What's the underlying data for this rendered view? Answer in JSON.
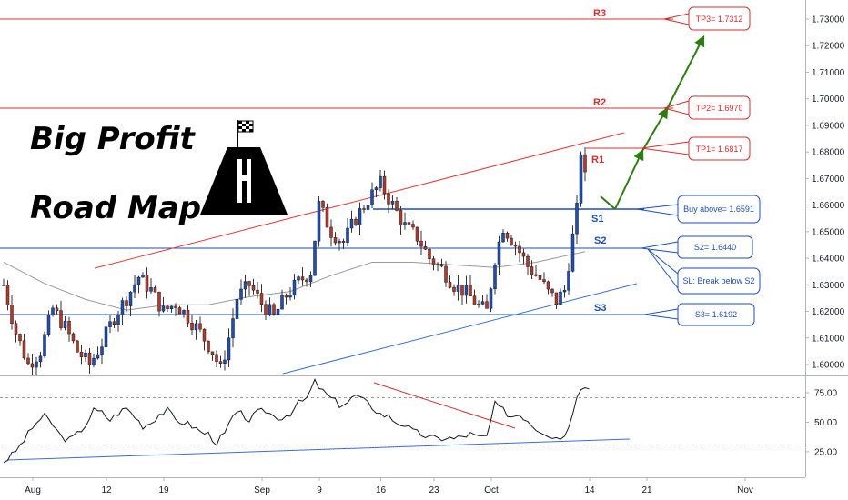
{
  "headline": {
    "line1": "Big Profit",
    "line2": "Road Map"
  },
  "price_axis": {
    "ticks": [
      "1.73000",
      "1.72000",
      "1.71000",
      "1.70000",
      "1.69000",
      "1.68000",
      "1.67000",
      "1.66000",
      "1.65000",
      "1.64000",
      "1.63000",
      "1.62000",
      "1.61000",
      "1.60000"
    ]
  },
  "rsi_axis": {
    "ticks": [
      "75.00",
      "50.00",
      "25.00"
    ]
  },
  "time_axis": {
    "ticks": [
      "Aug",
      "12",
      "19",
      "Sep",
      "9",
      "16",
      "23",
      "Oct",
      "14",
      "21",
      "Nov"
    ]
  },
  "levels": {
    "r3": "R3",
    "r2": "R2",
    "r1": "R1",
    "s1": "S1",
    "s2": "S2",
    "s3": "S3"
  },
  "callouts": {
    "tp3": "TP3= 1.7312",
    "tp2": "TP2= 1.6970",
    "tp1": "TP1= 1.6817",
    "buy": "Buy above= 1.6591",
    "s2": "S2= 1.6440",
    "sl": "SL: Break below S2",
    "s3": "S3= 1.6192"
  },
  "colors": {
    "resistance": "#d32f2f",
    "support": "#1e4fb4",
    "target_arrow": "#2e7d12",
    "candle_up": "#1e4fb4",
    "candle_down": "#b33a2a",
    "rsi_line": "#131722"
  },
  "icons": [
    "road-map-icon",
    "finish-flag-icon"
  ],
  "chart_data": [
    {
      "type": "candlestick",
      "title": "",
      "y_axis_ticks": [
        1.73,
        1.72,
        1.71,
        1.7,
        1.69,
        1.68,
        1.67,
        1.66,
        1.65,
        1.64,
        1.63,
        1.62,
        1.61,
        1.6
      ],
      "ylim": [
        1.595,
        1.7375
      ],
      "x_ticks": [
        "Aug",
        "12",
        "19",
        "Sep",
        "9",
        "16",
        "23",
        "Oct",
        "14",
        "21",
        "Nov"
      ],
      "close_path": [
        [
          0,
          1.63
        ],
        [
          3,
          1.612
        ],
        [
          6,
          1.6
        ],
        [
          9,
          1.605
        ],
        [
          12,
          1.621
        ],
        [
          15,
          1.614
        ],
        [
          18,
          1.605
        ],
        [
          21,
          1.6
        ],
        [
          24,
          1.608
        ],
        [
          27,
          1.618
        ],
        [
          30,
          1.625
        ],
        [
          33,
          1.633
        ],
        [
          36,
          1.628
        ],
        [
          39,
          1.62
        ],
        [
          42,
          1.623
        ],
        [
          45,
          1.618
        ],
        [
          48,
          1.612
        ],
        [
          51,
          1.605
        ],
        [
          53,
          1.598
        ],
        [
          55,
          1.61
        ],
        [
          57,
          1.625
        ],
        [
          60,
          1.63
        ],
        [
          63,
          1.623
        ],
        [
          66,
          1.618
        ],
        [
          69,
          1.626
        ],
        [
          72,
          1.631
        ],
        [
          75,
          1.635
        ],
        [
          77,
          1.66
        ],
        [
          80,
          1.65
        ],
        [
          83,
          1.646
        ],
        [
          86,
          1.655
        ],
        [
          89,
          1.662
        ],
        [
          92,
          1.668
        ],
        [
          95,
          1.66
        ],
        [
          98,
          1.652
        ],
        [
          101,
          1.648
        ],
        [
          104,
          1.64
        ],
        [
          107,
          1.636
        ],
        [
          110,
          1.63
        ],
        [
          113,
          1.627
        ],
        [
          116,
          1.622
        ],
        [
          118,
          1.62
        ],
        [
          120,
          1.64
        ],
        [
          122,
          1.652
        ],
        [
          125,
          1.645
        ],
        [
          128,
          1.637
        ],
        [
          131,
          1.632
        ],
        [
          133,
          1.627
        ],
        [
          135,
          1.624
        ],
        [
          137,
          1.628
        ],
        [
          139,
          1.648
        ],
        [
          141,
          1.668
        ],
        [
          142,
          1.673
        ]
      ],
      "series": [
        {
          "name": "",
          "color": "#999999",
          "values": [
            [
              0,
              1.6385
            ],
            [
              10,
              1.6305
            ],
            [
              20,
              1.6245
            ],
            [
              30,
              1.6205
            ],
            [
              40,
              1.6225
            ],
            [
              50,
              1.6225
            ],
            [
              60,
              1.6255
            ],
            [
              70,
              1.6275
            ],
            [
              80,
              1.6335
            ],
            [
              90,
              1.6385
            ],
            [
              100,
              1.6385
            ],
            [
              110,
              1.6375
            ],
            [
              120,
              1.6365
            ],
            [
              130,
              1.6385
            ],
            [
              142,
              1.6425
            ]
          ]
        }
      ],
      "levels": {
        "R3": 1.7312,
        "R2": 1.697,
        "R1": 1.6817,
        "S1": 1.6591,
        "S2": 1.644,
        "S3": 1.6192
      }
    },
    {
      "type": "line",
      "title": "",
      "y_axis_ticks": [
        75,
        50,
        25
      ],
      "ylim": [
        10,
        95
      ],
      "guide_lines": [
        70,
        30
      ],
      "series": [
        {
          "name": "",
          "values": [
            [
              0,
              17
            ],
            [
              2,
              22
            ],
            [
              4,
              30
            ],
            [
              6,
              40
            ],
            [
              8,
              50
            ],
            [
              10,
              55
            ],
            [
              12,
              48
            ],
            [
              14,
              38
            ],
            [
              16,
              35
            ],
            [
              18,
              40
            ],
            [
              20,
              48
            ],
            [
              22,
              60
            ],
            [
              24,
              58
            ],
            [
              26,
              52
            ],
            [
              28,
              58
            ],
            [
              30,
              62
            ],
            [
              32,
              55
            ],
            [
              34,
              47
            ],
            [
              36,
              50
            ],
            [
              38,
              57
            ],
            [
              40,
              60
            ],
            [
              42,
              52
            ],
            [
              44,
              50
            ],
            [
              46,
              47
            ],
            [
              48,
              42
            ],
            [
              50,
              40
            ],
            [
              52,
              33
            ],
            [
              54,
              40
            ],
            [
              56,
              55
            ],
            [
              58,
              57
            ],
            [
              60,
              52
            ],
            [
              62,
              58
            ],
            [
              64,
              60
            ],
            [
              66,
              55
            ],
            [
              68,
              54
            ],
            [
              70,
              58
            ],
            [
              72,
              66
            ],
            [
              74,
              70
            ],
            [
              76,
              84
            ],
            [
              78,
              76
            ],
            [
              80,
              70
            ],
            [
              82,
              65
            ],
            [
              84,
              67
            ],
            [
              86,
              73
            ],
            [
              88,
              68
            ],
            [
              90,
              63
            ],
            [
              92,
              57
            ],
            [
              94,
              55
            ],
            [
              96,
              50
            ],
            [
              98,
              48
            ],
            [
              100,
              42
            ],
            [
              102,
              40
            ],
            [
              104,
              37
            ],
            [
              106,
              36
            ],
            [
              108,
              37
            ],
            [
              110,
              36
            ],
            [
              112,
              38
            ],
            [
              114,
              40
            ],
            [
              116,
              37
            ],
            [
              118,
              38
            ],
            [
              120,
              65
            ],
            [
              122,
              60
            ],
            [
              124,
              55
            ],
            [
              126,
              57
            ],
            [
              128,
              52
            ],
            [
              130,
              45
            ],
            [
              132,
              42
            ],
            [
              134,
              38
            ],
            [
              136,
              37
            ],
            [
              138,
              45
            ],
            [
              140,
              74
            ],
            [
              141,
              80
            ],
            [
              142,
              82
            ],
            [
              143,
              78
            ]
          ]
        }
      ]
    }
  ]
}
